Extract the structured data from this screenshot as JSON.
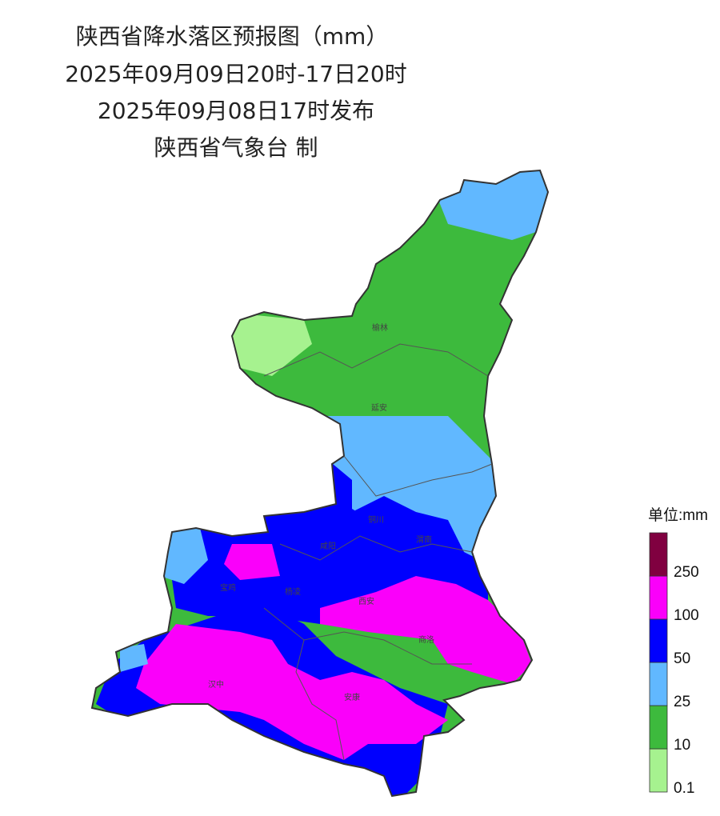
{
  "header": {
    "title": "陕西省降水落区预报图（mm）",
    "period": "2025年09月09日20时-17日20时",
    "issued": "2025年09月08日17时发布",
    "producer": "陕西省气象台 制"
  },
  "cities": [
    "榆林",
    "延安",
    "铜川",
    "渭南",
    "咸阳",
    "宝鸡",
    "杨凌",
    "西安",
    "商洛",
    "汉中",
    "安康"
  ],
  "legend": {
    "title": "单位:mm",
    "levels": [
      {
        "label": "0.1",
        "color": "#a6f28f"
      },
      {
        "label": "10",
        "color": "#3dba3d"
      },
      {
        "label": "25",
        "color": "#61b8ff"
      },
      {
        "label": "50",
        "color": "#0000fe"
      },
      {
        "label": "100",
        "color": "#fa00fa"
      },
      {
        "label": "250",
        "color": "#800040"
      }
    ]
  }
}
